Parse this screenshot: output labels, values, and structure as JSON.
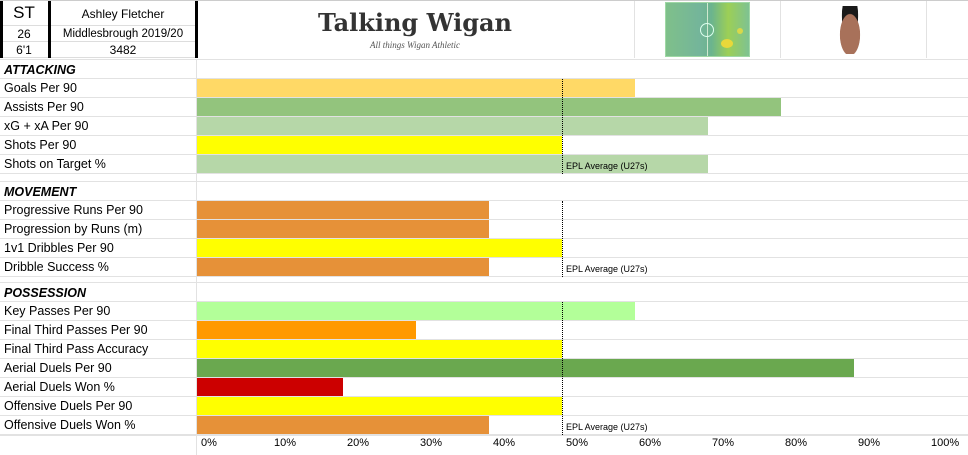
{
  "header": {
    "position": "ST",
    "name": "Ashley Fletcher",
    "age": "26",
    "club_season": "Middlesbrough 2019/20",
    "height": "6'1",
    "minutes": "3482",
    "title": "Talking Wigan",
    "subtitle": "All things Wigan Athletic"
  },
  "avg_label": "EPL Average (U27s)",
  "sections": [
    {
      "title": "ATTACKING",
      "rows": [
        {
          "label": "Goals Per 90",
          "value": 60,
          "color": "#ffd966"
        },
        {
          "label": "Assists Per 90",
          "value": 80,
          "color": "#93c47d"
        },
        {
          "label": "xG + xA Per 90",
          "value": 70,
          "color": "#b6d7a8"
        },
        {
          "label": "Shots Per 90",
          "value": 50,
          "color": "#ffff00"
        },
        {
          "label": "Shots on Target %",
          "value": 70,
          "color": "#b6d7a8"
        }
      ]
    },
    {
      "title": "MOVEMENT",
      "rows": [
        {
          "label": "Progressive Runs Per 90",
          "value": 40,
          "color": "#e69138"
        },
        {
          "label": "Progression by Runs (m)",
          "value": 40,
          "color": "#e69138"
        },
        {
          "label": "1v1 Dribbles Per 90",
          "value": 50,
          "color": "#ffff00"
        },
        {
          "label": "Dribble Success %",
          "value": 40,
          "color": "#e69138"
        }
      ]
    },
    {
      "title": "POSSESSION",
      "rows": [
        {
          "label": "Key Passes Per 90",
          "value": 60,
          "color": "#b3ff99"
        },
        {
          "label": "Final Third Passes Per 90",
          "value": 30,
          "color": "#ff9900"
        },
        {
          "label": "Final Third Pass Accuracy",
          "value": 50,
          "color": "#ffff00"
        },
        {
          "label": "Aerial Duels Per 90",
          "value": 90,
          "color": "#6aa84f"
        },
        {
          "label": "Aerial Duels Won %",
          "value": 20,
          "color": "#cc0000"
        },
        {
          "label": "Offensive Duels Per 90",
          "value": 50,
          "color": "#ffff00"
        },
        {
          "label": "Offensive Duels Won %",
          "value": 40,
          "color": "#e69138"
        }
      ]
    }
  ],
  "axis_ticks": [
    "0%",
    "10%",
    "20%",
    "30%",
    "40%",
    "50%",
    "60%",
    "70%",
    "80%",
    "90%",
    "100%"
  ]
}
